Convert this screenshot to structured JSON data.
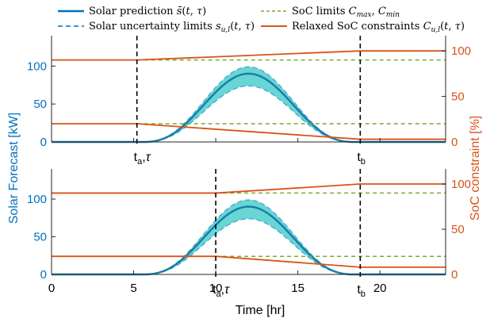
{
  "chart_data": {
    "type": "line",
    "legend": [
      {
        "label": "Solar prediction s̄(t,τ)",
        "color": "#0072bd",
        "style": "solid"
      },
      {
        "label": "SoC limits C_max, C_min",
        "color": "#77ac30",
        "style": "dashed"
      },
      {
        "label": "Solar uncertainty limits s_u,l(t,τ)",
        "color": "#0072bd",
        "style": "dashed"
      },
      {
        "label": "Relaxed SoC constraints C_u,l(t,τ)",
        "color": "#d95319",
        "style": "solid"
      }
    ],
    "xlabel": "Time [hr]",
    "ylabel_left": "Solar Forecast [kW]",
    "ylabel_right": "SoC constraint [%]",
    "xlim": [
      0,
      24
    ],
    "xticks": [
      0,
      5,
      10,
      15,
      20
    ],
    "ylim_left": [
      0,
      140
    ],
    "yticks_left": [
      0,
      50,
      100
    ],
    "ylim_right": [
      0,
      116.7
    ],
    "yticks_right": [
      0,
      50,
      100
    ],
    "solar_model": {
      "peak_kw": 90,
      "peak_hr": 12,
      "start_hr": 5.5,
      "end_hr": 18.5,
      "upper_scale": 1.1,
      "lower_scale": 0.82
    },
    "soc_limits": {
      "C_max": 90,
      "C_min": 20
    },
    "uncertainty_fill": "#4fcfcf",
    "panels": [
      {
        "t_a": 5.2,
        "t_b": 18.8,
        "t_a_label": "t_a,τ",
        "t_b_label": "t_b",
        "relaxed_upper": {
          "before": 90,
          "after": 100
        },
        "relaxed_lower": {
          "before": 20,
          "after": 3
        }
      },
      {
        "t_a": 10.0,
        "t_b": 18.8,
        "t_a_label": "t_a,τ",
        "t_b_label": "t_b",
        "relaxed_upper": {
          "before": 90,
          "after": 100
        },
        "relaxed_lower": {
          "before": 20,
          "after": 8
        }
      }
    ]
  }
}
